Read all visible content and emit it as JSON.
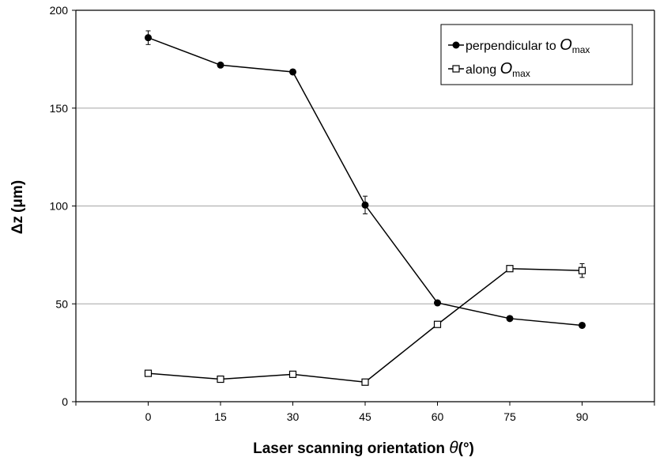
{
  "chart_data": {
    "type": "line",
    "title": "",
    "xlabel": {
      "main": "Laser scanning orientation ",
      "symbol": "θ",
      "unit": "(°)"
    },
    "ylabel": {
      "symbol": "Δz",
      "unit": "(μm)"
    },
    "x": [
      0,
      15,
      30,
      45,
      60,
      75,
      90
    ],
    "x_tick_labels": [
      "0",
      "15",
      "30",
      "45",
      "60",
      "75",
      "90"
    ],
    "y_tick_labels": [
      "0",
      "50",
      "100",
      "150",
      "200"
    ],
    "xlim": [
      -15,
      105
    ],
    "ylim": [
      0,
      200
    ],
    "y_gridlines": [
      50,
      100,
      150
    ],
    "grid": "horizontal",
    "legend_position": "top-right",
    "series": [
      {
        "name": "perpendicular to O_max",
        "legend_main": "perpendicular to ",
        "legend_symbol": "O",
        "legend_subscript": "max",
        "marker": "filled-circle",
        "color": "#000000",
        "values": [
          186,
          172,
          168.5,
          100.5,
          50.5,
          42.5,
          39
        ],
        "error": [
          3.5,
          0,
          0,
          4.5,
          0,
          0,
          0
        ]
      },
      {
        "name": "along O_max",
        "legend_main": "along ",
        "legend_symbol": "O",
        "legend_subscript": "max",
        "marker": "open-square",
        "color": "#000000",
        "values": [
          14.5,
          11.5,
          14,
          10,
          39.5,
          68,
          67
        ],
        "error": [
          0,
          0,
          0,
          0,
          0,
          0,
          3.5
        ]
      }
    ]
  }
}
